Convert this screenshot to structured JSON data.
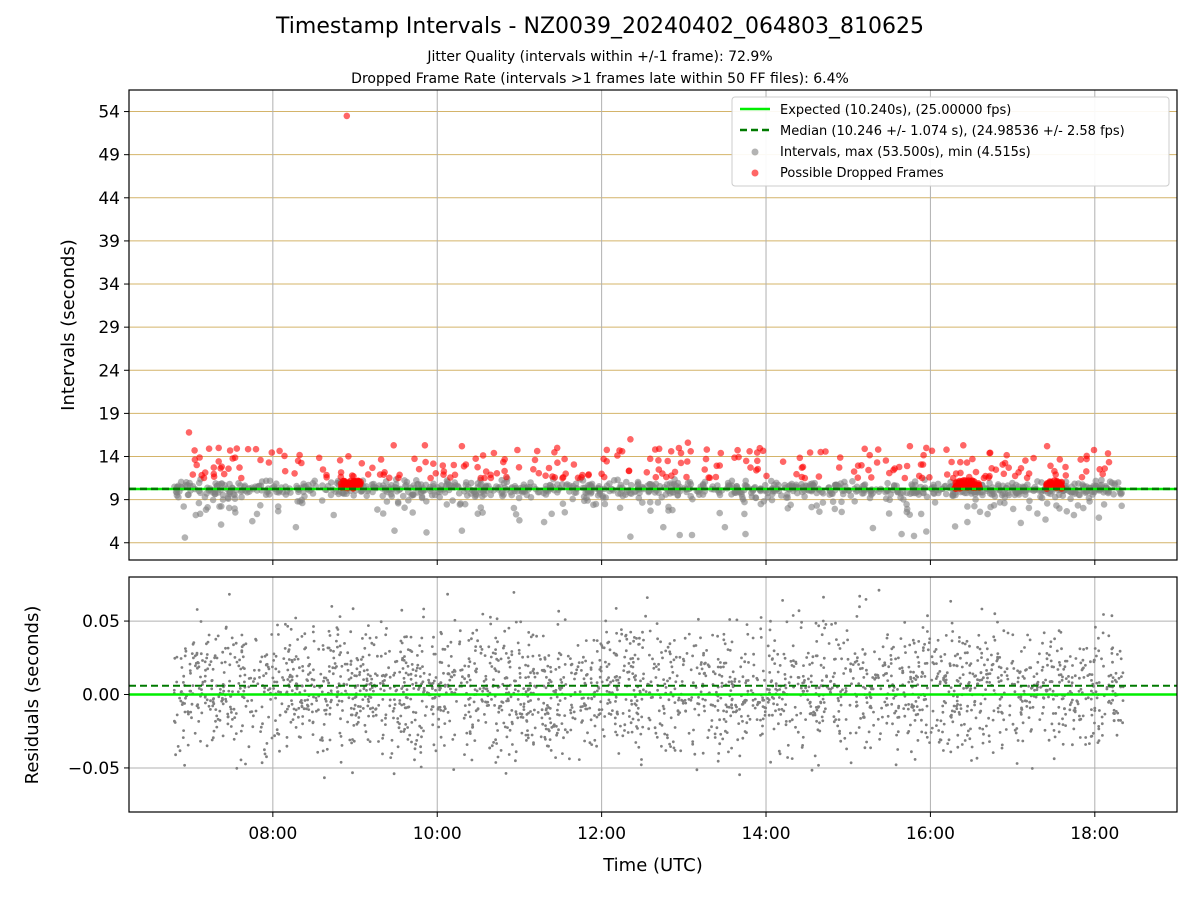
{
  "chart_data": [
    {
      "type": "scatter",
      "title": "Timestamp Intervals - NZ0039_20240402_064803_810625",
      "subtitles": [
        "Jitter Quality (intervals within +/-1 frame): 72.9%",
        "Dropped Frame Rate (intervals >1 frames late within 50 FF files): 6.4%"
      ],
      "ylabel": "Intervals (seconds)",
      "ylim": [
        2,
        56.5
      ],
      "y_ticks": [
        4,
        9,
        14,
        19,
        24,
        29,
        34,
        39,
        44,
        49,
        54
      ],
      "x_range_hours": [
        6.25,
        19.0
      ],
      "x_ticks": [
        "08:00",
        "10:00",
        "12:00",
        "14:00",
        "16:00",
        "18:00"
      ],
      "grid": "horizontal lines only",
      "legend_position": "upper right",
      "series": [
        {
          "name": "Expected (10.240s), (25.00000 fps)",
          "style": "solid line",
          "color": "#00ee00",
          "y": 10.24
        },
        {
          "name": "Median (10.246 +/- 1.074 s), (24.98536 +/- 2.58 fps)",
          "style": "dashed line",
          "color": "#007a00",
          "y": 10.246
        },
        {
          "name": "Intervals, max (53.500s), min (4.515s)",
          "style": "scatter",
          "color": "#808080",
          "points": [
            [
              6.93,
              4.6
            ],
            [
              7.37,
              6.1
            ],
            [
              7.75,
              6.5
            ],
            [
              8.28,
              5.8
            ],
            [
              9.48,
              5.4
            ],
            [
              9.87,
              5.2
            ],
            [
              10.3,
              5.4
            ],
            [
              11.0,
              6.6
            ],
            [
              11.3,
              6.4
            ],
            [
              12.35,
              4.7
            ],
            [
              12.75,
              5.8
            ],
            [
              12.95,
              4.9
            ],
            [
              13.1,
              4.9
            ],
            [
              13.5,
              5.8
            ],
            [
              13.75,
              5.0
            ],
            [
              14.65,
              7.6
            ],
            [
              15.3,
              5.7
            ],
            [
              15.65,
              5.0
            ],
            [
              15.8,
              4.8
            ],
            [
              15.95,
              5.3
            ],
            [
              16.3,
              5.9
            ],
            [
              16.45,
              6.4
            ],
            [
              17.1,
              6.3
            ],
            [
              17.4,
              6.7
            ],
            [
              18.05,
              6.9
            ],
            [
              7.1,
              8.6
            ],
            [
              8.6,
              8.9
            ],
            [
              11.9,
              8.4
            ],
            [
              14.3,
              8.4
            ],
            [
              16.9,
              8.6
            ]
          ]
        },
        {
          "name": "Possible Dropped Frames",
          "color": "#ff0000",
          "points": [
            [
              8.9,
              53.5
            ],
            [
              6.98,
              16.8
            ],
            [
              7.48,
              14.7
            ],
            [
              7.85,
              13.6
            ],
            [
              8.15,
              12.3
            ],
            [
              9.47,
              15.3
            ],
            [
              9.85,
              15.3
            ],
            [
              10.3,
              15.2
            ],
            [
              11.55,
              13.7
            ],
            [
              12.0,
              12.0
            ],
            [
              12.35,
              16.0
            ],
            [
              12.7,
              14.9
            ],
            [
              13.05,
              15.6
            ],
            [
              13.45,
              14.4
            ],
            [
              13.8,
              14.6
            ],
            [
              14.45,
              12.8
            ],
            [
              15.2,
              14.9
            ],
            [
              15.75,
              15.2
            ],
            [
              15.95,
              15.0
            ],
            [
              16.4,
              15.3
            ],
            [
              16.72,
              14.4
            ],
            [
              17.42,
              15.2
            ],
            [
              17.9,
              13.7
            ],
            [
              18.12,
              12.6
            ]
          ]
        }
      ]
    },
    {
      "type": "scatter",
      "ylabel": "Residuals (seconds)",
      "xlabel": "Time (UTC)",
      "ylim": [
        -0.08,
        0.08
      ],
      "y_ticks": [
        "0.05",
        "0.00",
        "−0.05"
      ],
      "x_ticks": [
        "08:00",
        "10:00",
        "12:00",
        "14:00",
        "16:00",
        "18:00"
      ],
      "grid": "on",
      "series": [
        {
          "name": "residuals",
          "color": "#808080",
          "x_range": [
            6.8,
            18.35
          ],
          "spread": [
            -0.075,
            0.075
          ]
        },
        {
          "name": "expected",
          "style": "solid line",
          "color": "#00ee00",
          "y": 0.0
        },
        {
          "name": "median",
          "style": "dashed line",
          "color": "#007a00",
          "y": 0.006
        }
      ]
    }
  ],
  "colors": {
    "expected": "#00ee00",
    "median": "#007a00",
    "intervals": "#808080",
    "dropped": "#ff0000",
    "hgrid": "#d4b46a",
    "grid": "#b0b0b0"
  }
}
